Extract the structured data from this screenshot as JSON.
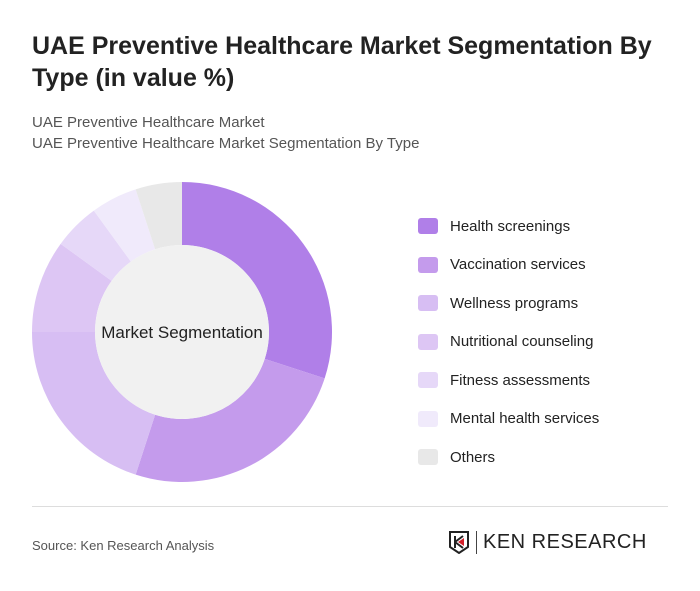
{
  "title": "UAE Preventive Healthcare Market Segmentation By Type (in value %)",
  "subtitle1": "UAE Preventive Healthcare Market",
  "subtitle2": "UAE Preventive Healthcare Market Segmentation By Type",
  "source": "Source: Ken Research Analysis",
  "logo_text": "KEN RESEARCH",
  "chart_data": {
    "type": "pie",
    "variant": "donut",
    "center_label": "Market Segmentation",
    "categories": [
      "Health screenings",
      "Vaccination services",
      "Wellness programs",
      "Nutritional counseling",
      "Fitness assessments",
      "Mental health services",
      "Others"
    ],
    "values": [
      30,
      25,
      20,
      10,
      5,
      5,
      5
    ],
    "colors": [
      "#b07fe8",
      "#c49bec",
      "#d7bef3",
      "#ddc6f4",
      "#e6d8f8",
      "#f0eafb",
      "#e8e8e8"
    ],
    "legend_position": "right"
  }
}
